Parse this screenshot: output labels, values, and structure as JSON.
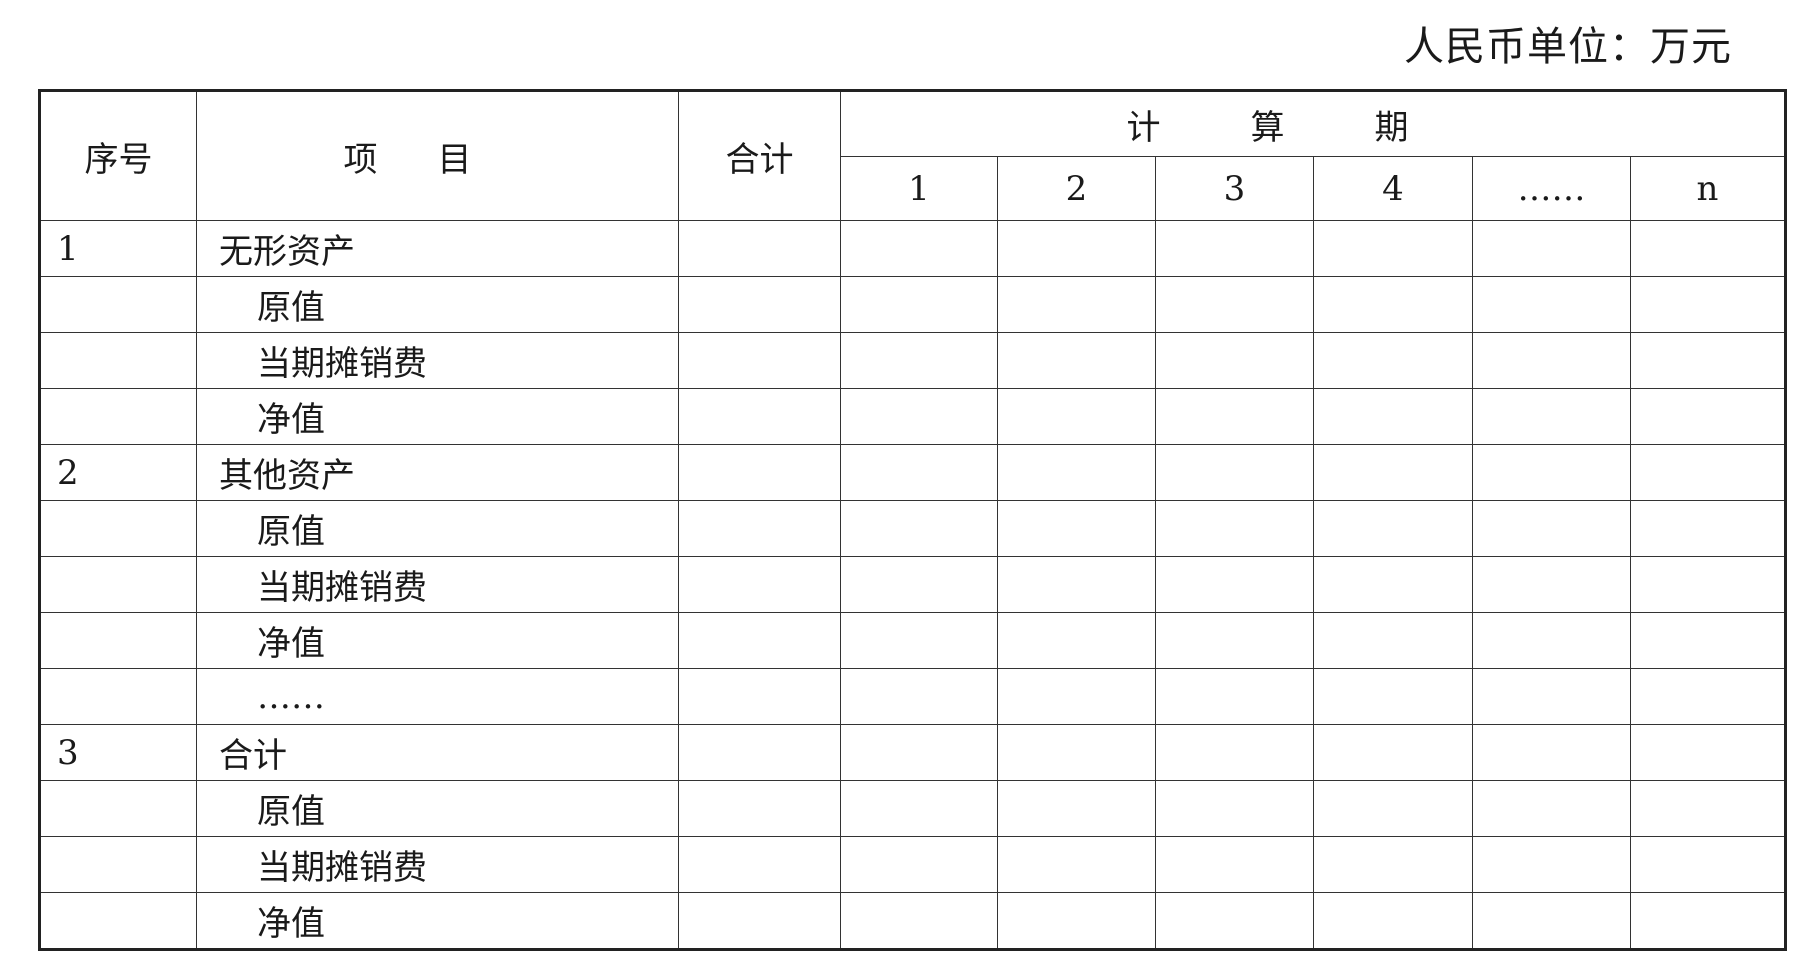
{
  "unit_label": "人民币单位：万元",
  "header": {
    "seq": "序号",
    "item": "项目",
    "total": "合计",
    "period_group": "计算期",
    "periods": [
      "1",
      "2",
      "3",
      "4",
      "……",
      "n"
    ]
  },
  "rows": [
    {
      "seq": "1",
      "item": "无形资产",
      "indent": false
    },
    {
      "seq": "",
      "item": "原值",
      "indent": true
    },
    {
      "seq": "",
      "item": "当期摊销费",
      "indent": true
    },
    {
      "seq": "",
      "item": "净值",
      "indent": true
    },
    {
      "seq": "2",
      "item": "其他资产",
      "indent": false
    },
    {
      "seq": "",
      "item": "原值",
      "indent": true
    },
    {
      "seq": "",
      "item": "当期摊销费",
      "indent": true
    },
    {
      "seq": "",
      "item": "净值",
      "indent": true
    },
    {
      "seq": "",
      "item": "……",
      "indent": true
    },
    {
      "seq": "3",
      "item": "合计",
      "indent": false
    },
    {
      "seq": "",
      "item": "原值",
      "indent": true
    },
    {
      "seq": "",
      "item": "当期摊销费",
      "indent": true
    },
    {
      "seq": "",
      "item": "净值",
      "indent": true
    }
  ]
}
